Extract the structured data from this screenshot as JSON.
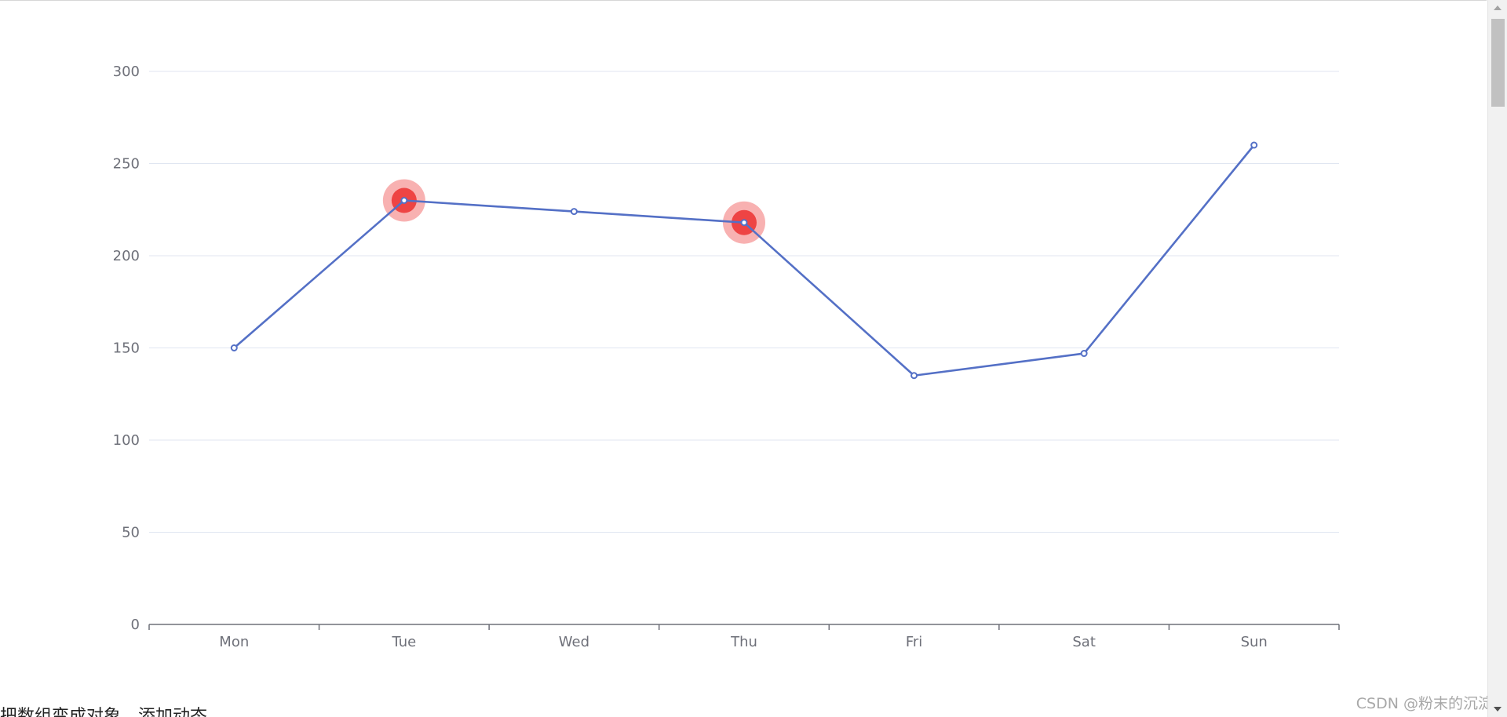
{
  "chart_data": {
    "type": "line",
    "categories": [
      "Mon",
      "Tue",
      "Wed",
      "Thu",
      "Fri",
      "Sat",
      "Sun"
    ],
    "series": [
      {
        "values": [
          150,
          230,
          224,
          218,
          135,
          147,
          260
        ],
        "color": "#5470c6",
        "highlighted_points": [
          "Tue",
          "Thu"
        ],
        "highlight_color": "#ee4444"
      }
    ],
    "yticks": [
      0,
      50,
      100,
      150,
      200,
      250,
      300
    ],
    "ylim": [
      0,
      300
    ],
    "grid": true,
    "title": "",
    "xlabel": "",
    "ylabel": ""
  },
  "footer": {
    "text": "把数组变成对象，添加动态"
  },
  "watermark": {
    "text": "CSDN @粉末的沉淀"
  }
}
